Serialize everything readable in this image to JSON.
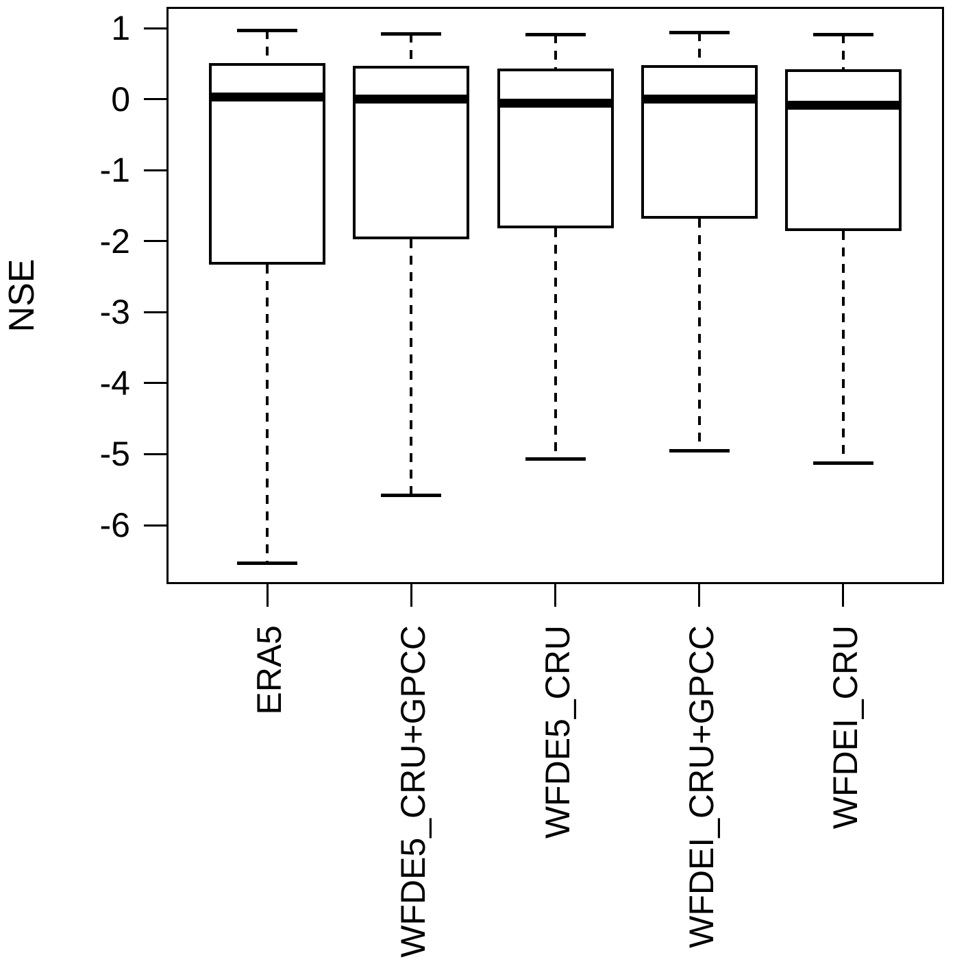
{
  "figure": {
    "background": "#ffffff",
    "axis_color": "#000000"
  },
  "chart_data": {
    "type": "boxplot",
    "title": "",
    "xlabel": "",
    "ylabel": "NSE",
    "categories": [
      "ERA5",
      "WFDE5_CRU+GPCC",
      "WFDE5_CRU",
      "WFDEI_CRU+GPCC",
      "WFDEI_CRU"
    ],
    "series": [
      {
        "name": "ERA5",
        "whisker_low": -6.54,
        "q1": -2.33,
        "median": 0.03,
        "q3": 0.51,
        "whisker_high": 0.97
      },
      {
        "name": "WFDE5_CRU+GPCC",
        "whisker_low": -5.58,
        "q1": -1.97,
        "median": 0.0,
        "q3": 0.47,
        "whisker_high": 0.92
      },
      {
        "name": "WFDE5_CRU",
        "whisker_low": -5.07,
        "q1": -1.82,
        "median": -0.06,
        "q3": 0.43,
        "whisker_high": 0.91
      },
      {
        "name": "WFDEI_CRU+GPCC",
        "whisker_low": -4.95,
        "q1": -1.68,
        "median": 0.0,
        "q3": 0.48,
        "whisker_high": 0.94
      },
      {
        "name": "WFDEI_CRU",
        "whisker_low": -5.13,
        "q1": -1.86,
        "median": -0.09,
        "q3": 0.42,
        "whisker_high": 0.91
      }
    ],
    "y_ticks": [
      1,
      0,
      -1,
      -2,
      -3,
      -4,
      -5,
      -6
    ],
    "ylim": [
      -6.83,
      1.3
    ],
    "xlim": [
      0.3,
      5.7
    ],
    "grid": false,
    "legend": null,
    "box_fill": "#ffffff",
    "line_color": "#000000"
  }
}
